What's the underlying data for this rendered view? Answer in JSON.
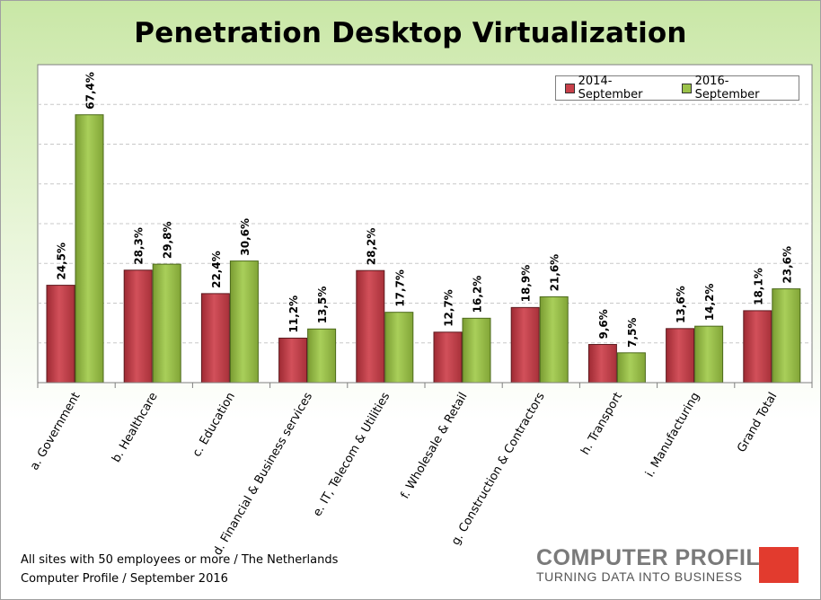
{
  "title": "Penetration Desktop Virtualization",
  "colors": {
    "series_2014": "#c8404a",
    "series_2016": "#9bc24a",
    "background_top": "#c9e7a6",
    "logo_red": "#e23b2e"
  },
  "legend": {
    "series_2014": "2014-September",
    "series_2016": "2016-September"
  },
  "footnote": {
    "line1": "All sites with 50 employees or more / The Netherlands",
    "line2": "Computer Profile / September 2016"
  },
  "logo": {
    "name": "COMPUTER PROFILE",
    "tagline": "TURNING DATA INTO BUSINESS"
  },
  "chart_data": {
    "type": "bar",
    "title": "Penetration Desktop Virtualization",
    "xlabel": "",
    "ylabel": "",
    "ylim": [
      0,
      80
    ],
    "grid": true,
    "legend_position": "top-right",
    "categories": [
      "a. Government",
      "b. Healthcare",
      "c. Education",
      "d. Financial & Business services",
      "e. IT, Telecom & Utilities",
      "f. Wholesale & Retail",
      "g. Construction & Contractors",
      "h. Transport",
      "i. Manufacturing",
      "Grand Total"
    ],
    "series": [
      {
        "name": "2014-September",
        "values": [
          24.5,
          28.3,
          22.4,
          11.2,
          28.2,
          12.7,
          18.9,
          9.6,
          13.6,
          18.1
        ],
        "labels": [
          "24,5%",
          "28,3%",
          "22,4%",
          "11,2%",
          "28,2%",
          "12,7%",
          "18,9%",
          "9,6%",
          "13,6%",
          "18,1%"
        ]
      },
      {
        "name": "2016-September",
        "values": [
          67.4,
          29.8,
          30.6,
          13.5,
          17.7,
          16.2,
          21.6,
          7.5,
          14.2,
          23.6
        ],
        "labels": [
          "67,4%",
          "29,8%",
          "30,6%",
          "13,5%",
          "17,7%",
          "16,2%",
          "21,6%",
          "7,5%",
          "14,2%",
          "23,6%"
        ]
      }
    ]
  }
}
